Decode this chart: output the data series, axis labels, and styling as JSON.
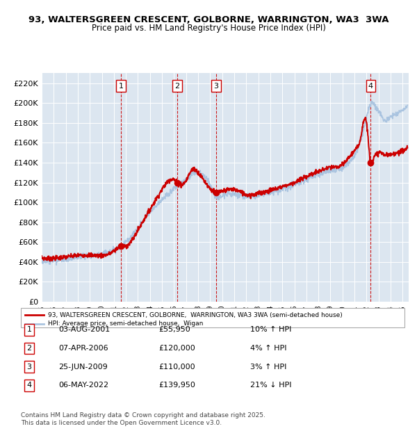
{
  "title_line1": "93, WALTERSGREEN CRESCENT, GOLBORNE, WARRINGTON, WA3  3WA",
  "title_line2": "Price paid vs. HM Land Registry's House Price Index (HPI)",
  "ylabel_ticks": [
    "£0",
    "£20K",
    "£40K",
    "£60K",
    "£80K",
    "£100K",
    "£120K",
    "£140K",
    "£160K",
    "£180K",
    "£200K",
    "£220K"
  ],
  "ytick_values": [
    0,
    20000,
    40000,
    60000,
    80000,
    100000,
    120000,
    140000,
    160000,
    180000,
    200000,
    220000
  ],
  "background_color": "#dce6f0",
  "plot_bg_color": "#dce6f0",
  "red_line_color": "#cc0000",
  "blue_line_color": "#aac4e0",
  "sale_marker_color": "#cc0000",
  "vline_color": "#cc0000",
  "grid_color": "#ffffff",
  "sales": [
    {
      "date_num": 2001.59,
      "price": 55950,
      "label": "1",
      "date_str": "03-AUG-2001",
      "pct": "10%",
      "dir": "↑"
    },
    {
      "date_num": 2006.27,
      "price": 120000,
      "label": "2",
      "date_str": "07-APR-2006",
      "pct": "4%",
      "dir": "↑"
    },
    {
      "date_num": 2009.48,
      "price": 110000,
      "label": "3",
      "date_str": "25-JUN-2009",
      "pct": "3%",
      "dir": "↑"
    },
    {
      "date_num": 2022.35,
      "price": 139950,
      "label": "4",
      "date_str": "06-MAY-2022",
      "pct": "21%",
      "dir": "↓"
    }
  ],
  "xmin": 1995.0,
  "xmax": 2025.5,
  "ymin": 0,
  "ymax": 230000,
  "footnote": "Contains HM Land Registry data © Crown copyright and database right 2025.\nThis data is licensed under the Open Government Licence v3.0.",
  "legend_red_label": "93, WALTERSGREEN CRESCENT, GOLBORNE,  WARRINGTON, WA3 3WA (semi-detached house)",
  "legend_blue_label": "HPI: Average price, semi-detached house,  Wigan"
}
